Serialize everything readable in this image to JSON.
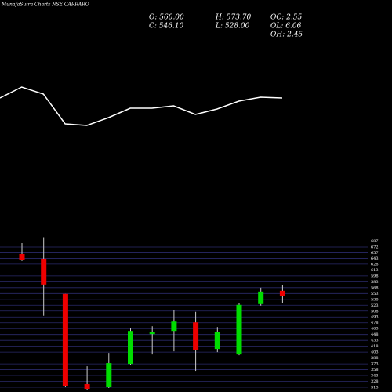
{
  "chart_data": [
    {
      "type": "line",
      "title": "MunafaSutra Charts NSE CARRARO",
      "info": [
        "O: 560.00",
        "H: 573.70",
        "OC: 2.55",
        "C: 546.10",
        "L: 528.00",
        "OH: 2.45",
        "OL: 6.06"
      ],
      "x": [
        0,
        1,
        2,
        3,
        4,
        5,
        6,
        7,
        8,
        9,
        10,
        11,
        12,
        13
      ],
      "series": [
        {
          "name": "Trend",
          "color": "#ffffff",
          "values": [
            175,
            189,
            180,
            142,
            140,
            150,
            162,
            162,
            165,
            154,
            161,
            171,
            176,
            175
          ]
        }
      ],
      "xlim": [
        0,
        13
      ],
      "ylim": [
        0,
        300
      ]
    },
    {
      "type": "candlestick",
      "categories": [
        null,
        null,
        null,
        null,
        null,
        null,
        null,
        null,
        null,
        null,
        null,
        null,
        null
      ],
      "open": [
        654,
        642,
        552,
        321,
        313,
        373,
        449,
        457,
        479,
        411,
        397,
        526,
        560
      ],
      "high": [
        682,
        697,
        552,
        367,
        401,
        465,
        469,
        510,
        506,
        467,
        528,
        568,
        573.7
      ],
      "low": [
        636,
        496,
        315,
        305,
        311,
        371,
        397,
        405,
        355,
        403,
        395,
        522,
        528
      ],
      "close": [
        638,
        576,
        317,
        309,
        375,
        457,
        455,
        481,
        409,
        455,
        524,
        558,
        546.1
      ],
      "up_color": "#00dd00",
      "down_color": "#ee0000",
      "grid_color": "#2a2a6a",
      "ylim": [
        301,
        698
      ],
      "yticks": [
        687,
        672,
        657,
        643,
        628,
        613,
        598,
        583,
        568,
        553,
        538,
        523,
        508,
        493,
        478,
        463,
        448,
        433,
        418,
        403,
        388,
        373,
        358,
        343,
        328,
        313
      ],
      "grid": true
    }
  ]
}
